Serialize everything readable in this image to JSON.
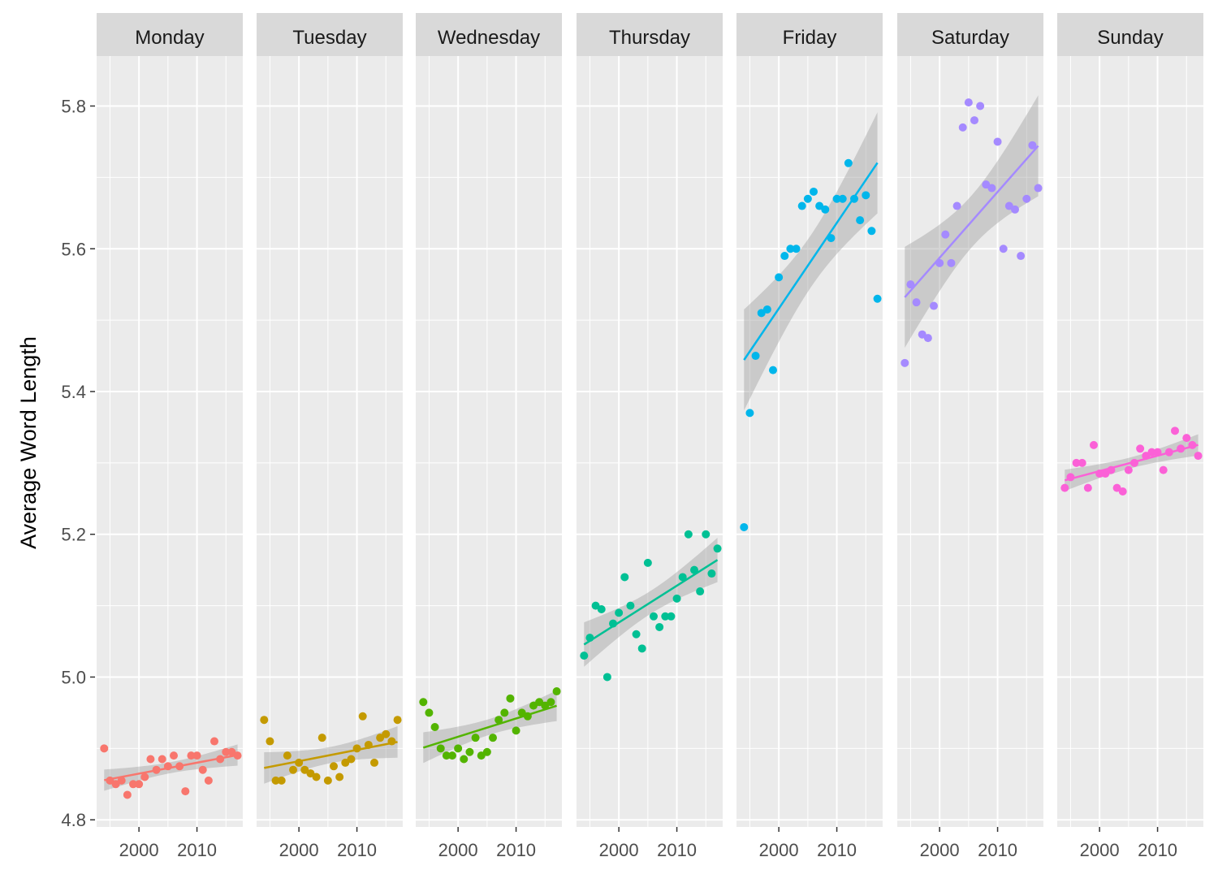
{
  "chart_data": {
    "type": "scatter",
    "facet_by": "day of week",
    "ylabel": "Average Word Length",
    "xlabel": "",
    "ylim": [
      4.79,
      5.87
    ],
    "xlim": [
      1992.7,
      2017.9
    ],
    "yticks": [
      "4.8",
      "5.0",
      "5.2",
      "5.4",
      "5.6",
      "5.8"
    ],
    "xticks": [
      "2000",
      "2010"
    ],
    "grid": true,
    "legend": "none",
    "smoother": "linear fit with confidence band",
    "x": [
      1994,
      1995,
      1996,
      1997,
      1998,
      1999,
      2000,
      2001,
      2002,
      2003,
      2004,
      2005,
      2006,
      2007,
      2008,
      2009,
      2010,
      2011,
      2012,
      2013,
      2014,
      2015,
      2016,
      2017
    ],
    "series": [
      {
        "name": "Monday",
        "color": "#F8766D",
        "values": [
          4.9,
          4.855,
          4.85,
          4.855,
          4.835,
          4.85,
          4.85,
          4.86,
          4.885,
          4.87,
          4.885,
          4.875,
          4.89,
          4.875,
          4.84,
          4.89,
          4.89,
          4.87,
          4.855,
          4.91,
          4.885,
          4.895,
          4.895,
          4.89
        ]
      },
      {
        "name": "Tuesday",
        "color": "#C49A00",
        "values": [
          4.94,
          4.91,
          4.855,
          4.855,
          4.89,
          4.87,
          4.88,
          4.87,
          4.865,
          4.86,
          4.915,
          4.855,
          4.875,
          4.86,
          4.88,
          4.885,
          4.9,
          4.945,
          4.905,
          4.88,
          4.915,
          4.92,
          4.91,
          4.94
        ]
      },
      {
        "name": "Wednesday",
        "color": "#53B400",
        "values": [
          4.965,
          4.95,
          4.93,
          4.9,
          4.89,
          4.89,
          4.9,
          4.885,
          4.895,
          4.915,
          4.89,
          4.895,
          4.915,
          4.94,
          4.95,
          4.97,
          4.925,
          4.95,
          4.945,
          4.96,
          4.965,
          4.96,
          4.965,
          4.98
        ]
      },
      {
        "name": "Thursday",
        "color": "#00C094",
        "values": [
          5.03,
          5.055,
          5.1,
          5.095,
          5.0,
          5.075,
          5.09,
          5.14,
          5.1,
          5.06,
          5.04,
          5.16,
          5.085,
          5.07,
          5.085,
          5.085,
          5.11,
          5.14,
          5.2,
          5.15,
          5.12,
          5.2,
          5.145,
          5.18
        ]
      },
      {
        "name": "Friday",
        "color": "#00B6EB",
        "values": [
          5.21,
          5.37,
          5.45,
          5.51,
          5.515,
          5.43,
          5.56,
          5.59,
          5.6,
          5.6,
          5.66,
          5.67,
          5.68,
          5.66,
          5.655,
          5.615,
          5.67,
          5.67,
          5.72,
          5.67,
          5.64,
          5.675,
          5.625,
          5.53
        ]
      },
      {
        "name": "Saturday",
        "color": "#A58AFF",
        "values": [
          5.44,
          5.55,
          5.525,
          5.48,
          5.475,
          5.52,
          5.58,
          5.62,
          5.58,
          5.66,
          5.77,
          5.805,
          5.78,
          5.8,
          5.69,
          5.685,
          5.75,
          5.6,
          5.66,
          5.655,
          5.59,
          5.67,
          5.745,
          5.685
        ]
      },
      {
        "name": "Sunday",
        "color": "#FB61D7",
        "values": [
          5.265,
          5.28,
          5.3,
          5.3,
          5.265,
          5.325,
          5.285,
          5.285,
          5.29,
          5.265,
          5.26,
          5.29,
          5.3,
          5.32,
          5.31,
          5.315,
          5.315,
          5.29,
          5.315,
          5.345,
          5.32,
          5.335,
          5.325,
          5.31
        ]
      }
    ]
  }
}
